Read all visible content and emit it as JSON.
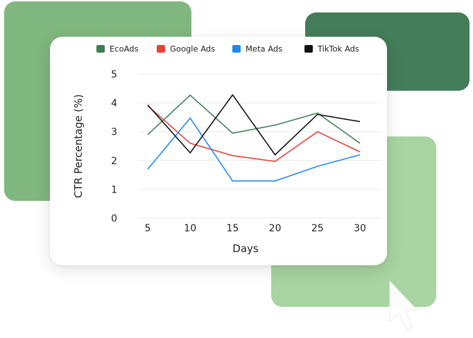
{
  "colors": {
    "blob_left": "#7fb77e",
    "blob_top_right": "#437d59",
    "blob_bottom_right": "#a7d4a0"
  },
  "chart_data": {
    "type": "line",
    "title": "",
    "xlabel": "Days",
    "ylabel": "CTR Percentage (%)",
    "x": [
      5,
      10,
      15,
      20,
      25,
      30
    ],
    "xticks": [
      "5",
      "10",
      "15",
      "20",
      "25",
      "30"
    ],
    "yticks": [
      "0",
      "1",
      "2",
      "3",
      "4",
      "5"
    ],
    "ylim": [
      0,
      5
    ],
    "grid": true,
    "legend_position": "top",
    "series": [
      {
        "name": "EcoAds",
        "color": "#3f7d57",
        "values": [
          2.9,
          4.27,
          2.95,
          3.23,
          3.65,
          2.6
        ]
      },
      {
        "name": "Google Ads",
        "color": "#e8413a",
        "values": [
          3.9,
          2.6,
          2.17,
          1.97,
          3.0,
          2.3
        ]
      },
      {
        "name": "Meta Ads",
        "color": "#1e88f0",
        "values": [
          1.7,
          3.47,
          1.29,
          1.29,
          1.8,
          2.2
        ]
      },
      {
        "name": "TikTok Ads",
        "color": "#111111",
        "values": [
          3.93,
          2.27,
          4.28,
          2.2,
          3.6,
          3.35
        ]
      }
    ]
  }
}
